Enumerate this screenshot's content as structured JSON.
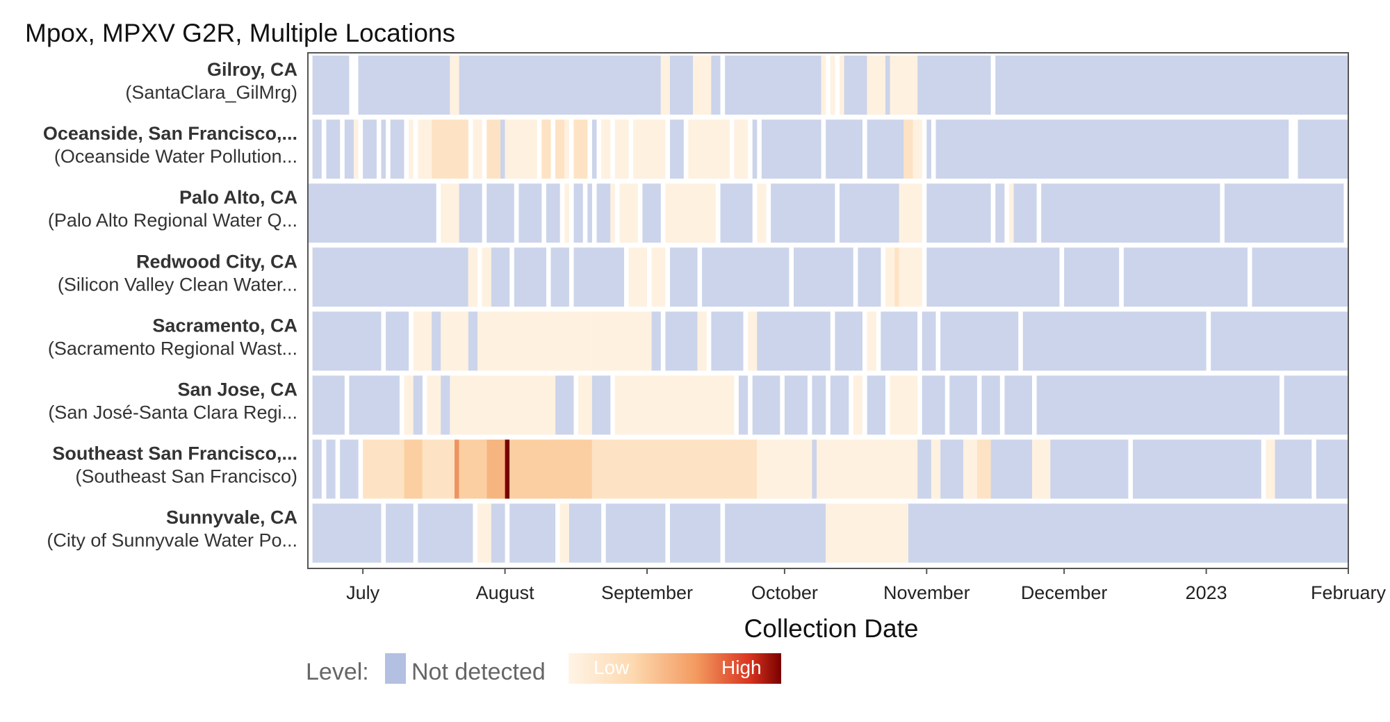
{
  "chart_data": {
    "type": "heatmap",
    "title": "Mpox, MPXV G2R, Multiple Locations",
    "xlabel": "Collection Date",
    "ylabel": "",
    "x_ticks": [
      {
        "label": "July",
        "date": "2022-07-01"
      },
      {
        "label": "August",
        "date": "2022-08-01"
      },
      {
        "label": "September",
        "date": "2022-09-01"
      },
      {
        "label": "October",
        "date": "2022-10-01"
      },
      {
        "label": "November",
        "date": "2022-11-01"
      },
      {
        "label": "December",
        "date": "2022-12-01"
      },
      {
        "label": "2023",
        "date": "2023-01-01"
      },
      {
        "label": "February",
        "date": "2023-02-01"
      }
    ],
    "x_range": [
      "2022-06-19",
      "2023-02-01"
    ],
    "level_scale": "0 = not detected, 1 = low … 10 = high",
    "legend": {
      "label": "Level:",
      "not_detected": "Not detected",
      "low": "Low",
      "high": "High"
    },
    "rows": [
      {
        "name": "Gilroy, CA",
        "site": "(SantaClara_GilMrg)",
        "segments": [
          [
            "2022-06-20",
            "2022-06-28",
            0
          ],
          [
            "2022-06-30",
            "2022-07-20",
            0
          ],
          [
            "2022-07-20",
            "2022-07-22",
            1
          ],
          [
            "2022-07-22",
            "2022-09-04",
            0
          ],
          [
            "2022-09-04",
            "2022-09-06",
            1
          ],
          [
            "2022-09-06",
            "2022-09-11",
            0
          ],
          [
            "2022-09-11",
            "2022-09-15",
            1
          ],
          [
            "2022-09-15",
            "2022-09-17",
            0
          ],
          [
            "2022-09-18",
            "2022-10-09",
            0
          ],
          [
            "2022-10-09",
            "2022-10-10",
            1
          ],
          [
            "2022-10-11",
            "2022-10-12",
            1
          ],
          [
            "2022-10-13",
            "2022-10-14",
            1
          ],
          [
            "2022-10-14",
            "2022-10-19",
            0
          ],
          [
            "2022-10-19",
            "2022-10-23",
            1
          ],
          [
            "2022-10-23",
            "2022-10-24",
            0
          ],
          [
            "2022-10-24",
            "2022-10-30",
            1
          ],
          [
            "2022-10-30",
            "2022-11-15",
            0
          ],
          [
            "2022-11-16",
            "2023-02-01",
            0
          ]
        ]
      },
      {
        "name": "Oceanside, San Francisco,...",
        "site": "(Oceanside Water Pollution...",
        "segments": [
          [
            "2022-06-20",
            "2022-06-22",
            0
          ],
          [
            "2022-06-23",
            "2022-06-26",
            0
          ],
          [
            "2022-06-27",
            "2022-06-29",
            0
          ],
          [
            "2022-06-29",
            "2022-06-30",
            1
          ],
          [
            "2022-07-01",
            "2022-07-04",
            0
          ],
          [
            "2022-07-05",
            "2022-07-06",
            0
          ],
          [
            "2022-07-07",
            "2022-07-10",
            0
          ],
          [
            "2022-07-11",
            "2022-07-12",
            1
          ],
          [
            "2022-07-13",
            "2022-07-16",
            1
          ],
          [
            "2022-07-16",
            "2022-07-24",
            2
          ],
          [
            "2022-07-25",
            "2022-07-27",
            1
          ],
          [
            "2022-07-28",
            "2022-07-31",
            2
          ],
          [
            "2022-07-31",
            "2022-08-01",
            0
          ],
          [
            "2022-08-01",
            "2022-08-08",
            1
          ],
          [
            "2022-08-09",
            "2022-08-11",
            2
          ],
          [
            "2022-08-12",
            "2022-08-14",
            2
          ],
          [
            "2022-08-14",
            "2022-08-15",
            1
          ],
          [
            "2022-08-16",
            "2022-08-19",
            2
          ],
          [
            "2022-08-20",
            "2022-08-21",
            0
          ],
          [
            "2022-08-22",
            "2022-08-24",
            1
          ],
          [
            "2022-08-25",
            "2022-08-28",
            1
          ],
          [
            "2022-08-29",
            "2022-09-05",
            1
          ],
          [
            "2022-09-06",
            "2022-09-09",
            0
          ],
          [
            "2022-09-10",
            "2022-09-19",
            1
          ],
          [
            "2022-09-20",
            "2022-09-23",
            1
          ],
          [
            "2022-09-24",
            "2022-09-25",
            0
          ],
          [
            "2022-09-26",
            "2022-10-09",
            0
          ],
          [
            "2022-10-10",
            "2022-10-18",
            0
          ],
          [
            "2022-10-19",
            "2022-10-27",
            0
          ],
          [
            "2022-10-27",
            "2022-10-29",
            2
          ],
          [
            "2022-10-29",
            "2022-10-31",
            1
          ],
          [
            "2022-11-01",
            "2022-11-02",
            0
          ],
          [
            "2022-11-03",
            "2023-01-19",
            0
          ],
          [
            "2023-01-21",
            "2023-02-01",
            0
          ]
        ]
      },
      {
        "name": "Palo Alto, CA",
        "site": "(Palo Alto Regional Water Q...",
        "segments": [
          [
            "2022-06-19",
            "2022-07-17",
            0
          ],
          [
            "2022-07-18",
            "2022-07-22",
            1
          ],
          [
            "2022-07-22",
            "2022-07-27",
            0
          ],
          [
            "2022-07-28",
            "2022-08-03",
            0
          ],
          [
            "2022-08-04",
            "2022-08-09",
            0
          ],
          [
            "2022-08-10",
            "2022-08-13",
            0
          ],
          [
            "2022-08-14",
            "2022-08-15",
            1
          ],
          [
            "2022-08-16",
            "2022-08-18",
            0
          ],
          [
            "2022-08-19",
            "2022-08-20",
            0
          ],
          [
            "2022-08-21",
            "2022-08-24",
            0
          ],
          [
            "2022-08-24",
            "2022-08-25",
            1
          ],
          [
            "2022-08-26",
            "2022-08-30",
            1
          ],
          [
            "2022-08-31",
            "2022-09-04",
            0
          ],
          [
            "2022-09-05",
            "2022-09-16",
            1
          ],
          [
            "2022-09-17",
            "2022-09-24",
            0
          ],
          [
            "2022-09-25",
            "2022-09-27",
            1
          ],
          [
            "2022-09-28",
            "2022-10-12",
            0
          ],
          [
            "2022-10-13",
            "2022-10-26",
            0
          ],
          [
            "2022-10-26",
            "2022-10-31",
            1
          ],
          [
            "2022-11-01",
            "2022-11-15",
            0
          ],
          [
            "2022-11-16",
            "2022-11-18",
            0
          ],
          [
            "2022-11-19",
            "2022-11-20",
            1
          ],
          [
            "2022-11-20",
            "2022-11-25",
            0
          ],
          [
            "2022-11-26",
            "2023-01-04",
            0
          ],
          [
            "2023-01-05",
            "2023-01-31",
            0
          ]
        ]
      },
      {
        "name": "Redwood City, CA",
        "site": "(Silicon Valley Clean Water...",
        "segments": [
          [
            "2022-06-20",
            "2022-07-24",
            0
          ],
          [
            "2022-07-24",
            "2022-07-26",
            1
          ],
          [
            "2022-07-27",
            "2022-07-29",
            1
          ],
          [
            "2022-07-29",
            "2022-08-02",
            0
          ],
          [
            "2022-08-03",
            "2022-08-10",
            0
          ],
          [
            "2022-08-11",
            "2022-08-15",
            0
          ],
          [
            "2022-08-16",
            "2022-08-27",
            0
          ],
          [
            "2022-08-28",
            "2022-09-01",
            1
          ],
          [
            "2022-09-02",
            "2022-09-05",
            1
          ],
          [
            "2022-09-06",
            "2022-09-12",
            0
          ],
          [
            "2022-09-13",
            "2022-10-02",
            0
          ],
          [
            "2022-10-03",
            "2022-10-16",
            0
          ],
          [
            "2022-10-17",
            "2022-10-22",
            0
          ],
          [
            "2022-10-23",
            "2022-10-25",
            1
          ],
          [
            "2022-10-25",
            "2022-10-26",
            2
          ],
          [
            "2022-10-26",
            "2022-10-31",
            1
          ],
          [
            "2022-11-01",
            "2022-11-30",
            0
          ],
          [
            "2022-12-01",
            "2022-12-13",
            0
          ],
          [
            "2022-12-14",
            "2023-01-10",
            0
          ],
          [
            "2023-01-11",
            "2023-02-01",
            0
          ]
        ]
      },
      {
        "name": "Sacramento, CA",
        "site": "(Sacramento Regional Wast...",
        "segments": [
          [
            "2022-06-20",
            "2022-07-05",
            0
          ],
          [
            "2022-07-06",
            "2022-07-11",
            0
          ],
          [
            "2022-07-12",
            "2022-07-16",
            1
          ],
          [
            "2022-07-16",
            "2022-07-18",
            0
          ],
          [
            "2022-07-18",
            "2022-07-24",
            1
          ],
          [
            "2022-07-24",
            "2022-07-26",
            0
          ],
          [
            "2022-07-26",
            "2022-08-20",
            1
          ],
          [
            "2022-08-20",
            "2022-09-02",
            1
          ],
          [
            "2022-09-02",
            "2022-09-04",
            0
          ],
          [
            "2022-09-05",
            "2022-09-12",
            0
          ],
          [
            "2022-09-12",
            "2022-09-14",
            1
          ],
          [
            "2022-09-15",
            "2022-09-22",
            0
          ],
          [
            "2022-09-23",
            "2022-09-25",
            1
          ],
          [
            "2022-09-25",
            "2022-10-11",
            0
          ],
          [
            "2022-10-12",
            "2022-10-18",
            0
          ],
          [
            "2022-10-19",
            "2022-10-21",
            1
          ],
          [
            "2022-10-22",
            "2022-10-30",
            0
          ],
          [
            "2022-10-31",
            "2022-11-03",
            0
          ],
          [
            "2022-11-04",
            "2022-11-21",
            0
          ],
          [
            "2022-11-22",
            "2023-01-01",
            0
          ],
          [
            "2023-01-02",
            "2023-02-01",
            0
          ]
        ]
      },
      {
        "name": "San Jose, CA",
        "site": "(San José-Santa Clara Regi...",
        "segments": [
          [
            "2022-06-20",
            "2022-06-27",
            0
          ],
          [
            "2022-06-28",
            "2022-07-09",
            0
          ],
          [
            "2022-07-10",
            "2022-07-12",
            1
          ],
          [
            "2022-07-12",
            "2022-07-14",
            0
          ],
          [
            "2022-07-15",
            "2022-07-18",
            1
          ],
          [
            "2022-07-18",
            "2022-07-20",
            0
          ],
          [
            "2022-07-20",
            "2022-07-25",
            1
          ],
          [
            "2022-07-25",
            "2022-08-12",
            1
          ],
          [
            "2022-08-12",
            "2022-08-16",
            0
          ],
          [
            "2022-08-17",
            "2022-08-20",
            1
          ],
          [
            "2022-08-20",
            "2022-08-24",
            0
          ],
          [
            "2022-08-25",
            "2022-09-05",
            1
          ],
          [
            "2022-09-05",
            "2022-09-20",
            1
          ],
          [
            "2022-09-21",
            "2022-09-23",
            0
          ],
          [
            "2022-09-24",
            "2022-09-30",
            0
          ],
          [
            "2022-10-01",
            "2022-10-06",
            0
          ],
          [
            "2022-10-07",
            "2022-10-10",
            0
          ],
          [
            "2022-10-11",
            "2022-10-15",
            0
          ],
          [
            "2022-10-16",
            "2022-10-18",
            1
          ],
          [
            "2022-10-19",
            "2022-10-23",
            0
          ],
          [
            "2022-10-24",
            "2022-10-30",
            1
          ],
          [
            "2022-10-31",
            "2022-11-05",
            0
          ],
          [
            "2022-11-06",
            "2022-11-12",
            0
          ],
          [
            "2022-11-13",
            "2022-11-17",
            0
          ],
          [
            "2022-11-18",
            "2022-11-24",
            0
          ],
          [
            "2022-11-25",
            "2023-01-17",
            0
          ],
          [
            "2023-01-18",
            "2023-02-01",
            0
          ]
        ]
      },
      {
        "name": "Southeast San Francisco,...",
        "site": "(Southeast San Francisco)",
        "segments": [
          [
            "2022-06-20",
            "2022-06-22",
            0
          ],
          [
            "2022-06-23",
            "2022-06-25",
            0
          ],
          [
            "2022-06-26",
            "2022-06-30",
            0
          ],
          [
            "2022-07-01",
            "2022-07-10",
            2
          ],
          [
            "2022-07-10",
            "2022-07-14",
            3
          ],
          [
            "2022-07-14",
            "2022-07-21",
            2
          ],
          [
            "2022-07-21",
            "2022-07-22",
            5
          ],
          [
            "2022-07-22",
            "2022-07-28",
            3
          ],
          [
            "2022-07-28",
            "2022-08-01",
            4
          ],
          [
            "2022-08-01",
            "2022-08-02",
            10
          ],
          [
            "2022-08-02",
            "2022-08-20",
            3
          ],
          [
            "2022-08-20",
            "2022-09-25",
            2
          ],
          [
            "2022-09-25",
            "2022-09-27",
            1
          ],
          [
            "2022-09-27",
            "2022-10-07",
            1
          ],
          [
            "2022-10-07",
            "2022-10-08",
            0
          ],
          [
            "2022-10-08",
            "2022-10-30",
            1
          ],
          [
            "2022-10-30",
            "2022-11-02",
            0
          ],
          [
            "2022-11-02",
            "2022-11-04",
            1
          ],
          [
            "2022-11-04",
            "2022-11-09",
            0
          ],
          [
            "2022-11-09",
            "2022-11-12",
            1
          ],
          [
            "2022-11-12",
            "2022-11-15",
            2
          ],
          [
            "2022-11-15",
            "2022-11-24",
            0
          ],
          [
            "2022-11-24",
            "2022-11-28",
            1
          ],
          [
            "2022-11-28",
            "2022-12-15",
            0
          ],
          [
            "2022-12-16",
            "2023-01-13",
            0
          ],
          [
            "2023-01-14",
            "2023-01-16",
            1
          ],
          [
            "2023-01-16",
            "2023-01-24",
            0
          ],
          [
            "2023-01-25",
            "2023-02-01",
            0
          ]
        ]
      },
      {
        "name": "Sunnyvale, CA",
        "site": "(City of Sunnyvale Water Po...",
        "segments": [
          [
            "2022-06-20",
            "2022-07-05",
            0
          ],
          [
            "2022-07-06",
            "2022-07-12",
            0
          ],
          [
            "2022-07-13",
            "2022-07-25",
            0
          ],
          [
            "2022-07-26",
            "2022-07-29",
            1
          ],
          [
            "2022-07-29",
            "2022-08-01",
            0
          ],
          [
            "2022-08-02",
            "2022-08-12",
            0
          ],
          [
            "2022-08-13",
            "2022-08-15",
            1
          ],
          [
            "2022-08-15",
            "2022-08-22",
            0
          ],
          [
            "2022-08-23",
            "2022-09-05",
            0
          ],
          [
            "2022-09-06",
            "2022-09-17",
            0
          ],
          [
            "2022-09-18",
            "2022-10-10",
            0
          ],
          [
            "2022-10-10",
            "2022-10-15",
            1
          ],
          [
            "2022-10-15",
            "2022-10-28",
            1
          ],
          [
            "2022-10-28",
            "2022-11-03",
            0
          ],
          [
            "2022-11-03",
            "2023-02-01",
            0
          ]
        ]
      }
    ]
  }
}
